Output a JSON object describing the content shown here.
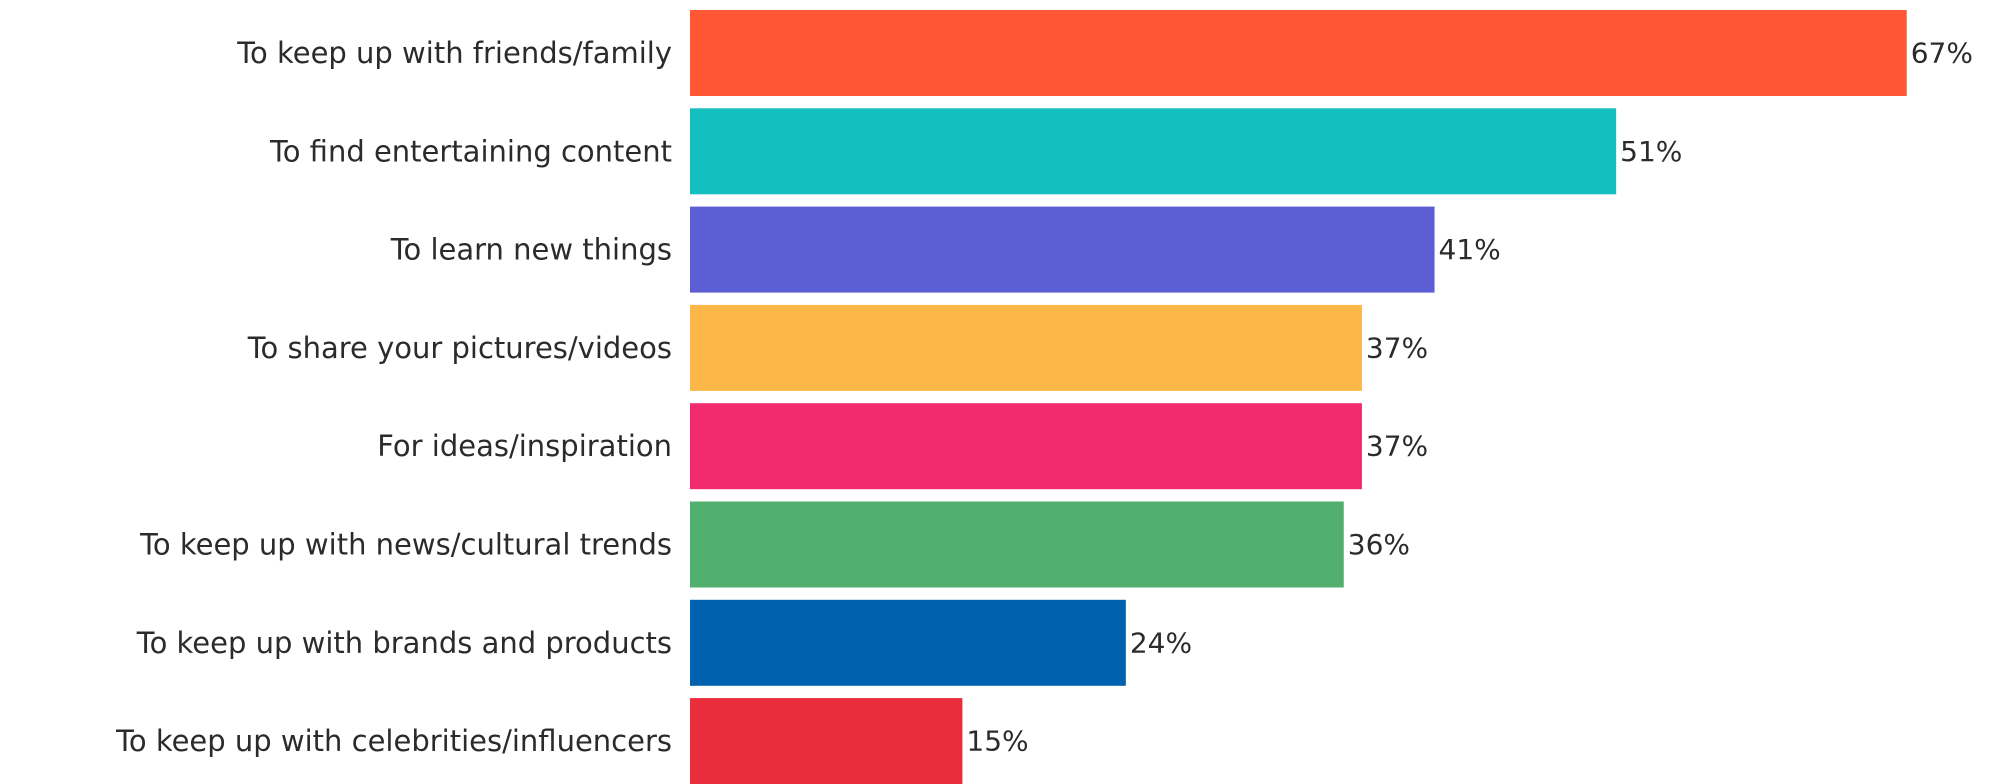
{
  "chart_data": {
    "type": "bar",
    "orientation": "horizontal",
    "title": "",
    "xlabel": "",
    "ylabel": "",
    "xlim": [
      0,
      67
    ],
    "grid": false,
    "legend": "none",
    "value_format": "{v}%",
    "categories": [
      "To keep up with friends/family",
      "To find entertaining content",
      "To learn new things",
      "To share your pictures/videos",
      "For ideas/inspiration",
      "To keep up with news/cultural trends",
      "To keep up with brands and products",
      "To keep up with celebrities/influencers"
    ],
    "values": [
      67,
      51,
      41,
      37,
      37,
      36,
      24,
      15
    ],
    "value_labels": [
      "67%",
      "51%",
      "41%",
      "37%",
      "37%",
      "36%",
      "24%",
      "15%"
    ],
    "colors": [
      "#FF5733",
      "#14BFC0",
      "#5C5FD4",
      "#FCB748",
      "#F22A6E",
      "#52B06E",
      "#0061AE",
      "#EA2D3C"
    ]
  }
}
